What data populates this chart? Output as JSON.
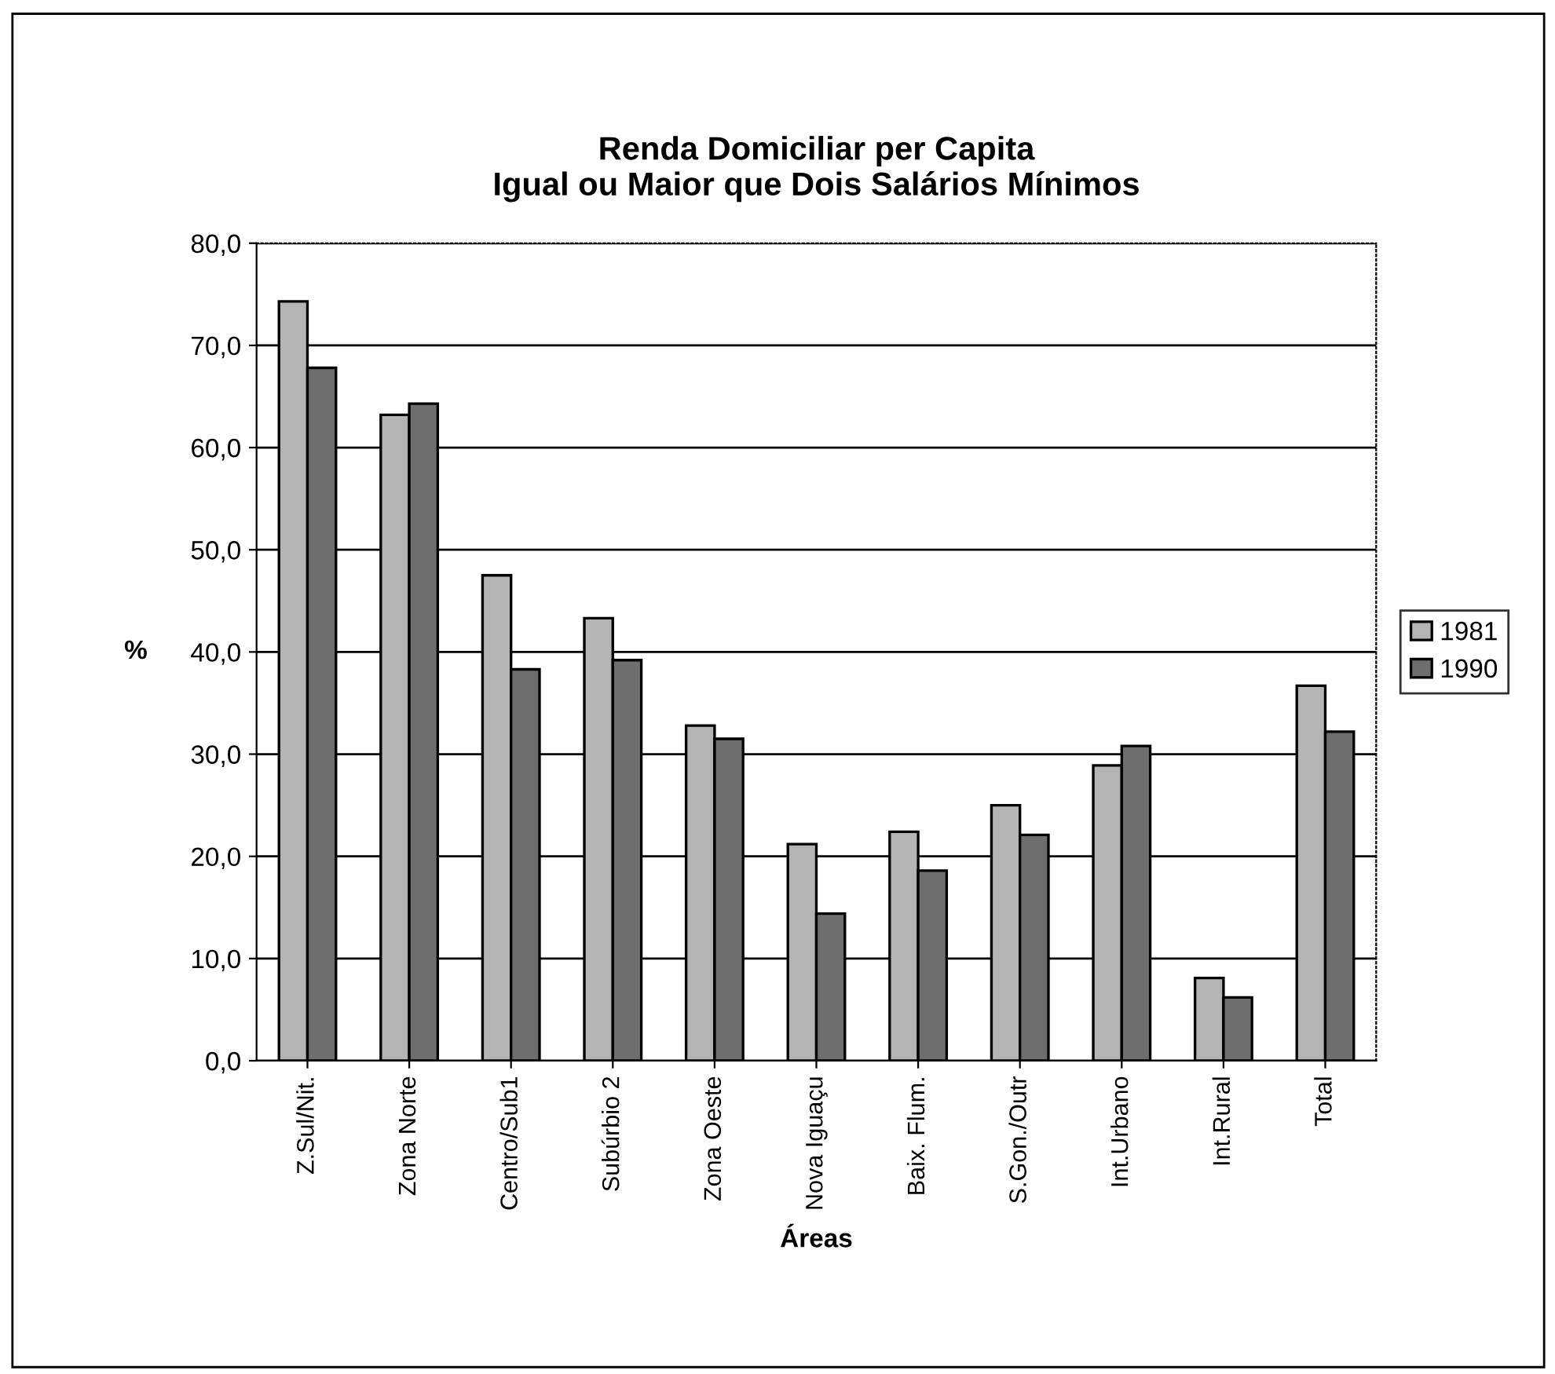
{
  "chart_data": {
    "type": "bar",
    "title": "Renda Domiciliar per Capita\nIgual ou Maior que Dois Salários Mínimos",
    "xlabel": "Áreas",
    "ylabel": "%",
    "categories": [
      "Z.Sul/Nit.",
      "Zona Norte",
      "Centro/Sub1",
      "Subúrbio 2",
      "Zona Oeste",
      "Nova Iguaçu",
      "Baix. Flum.",
      "S.Gon./Outr",
      "Int.Urbano",
      "Int.Rural",
      "Total"
    ],
    "series": [
      {
        "name": "1981",
        "color": "#b4b4b4",
        "values": [
          74.3,
          63.2,
          47.5,
          43.3,
          32.8,
          21.2,
          22.4,
          25.0,
          28.9,
          8.1,
          36.7
        ]
      },
      {
        "name": "1990",
        "color": "#6e6e6e",
        "values": [
          67.8,
          64.3,
          38.3,
          39.2,
          31.5,
          14.4,
          18.6,
          22.1,
          30.8,
          6.2,
          32.2
        ]
      }
    ],
    "ylim": [
      0,
      80
    ],
    "yticks": [
      {
        "value": 0,
        "label": "0,0"
      },
      {
        "value": 10,
        "label": "10,0"
      },
      {
        "value": 20,
        "label": "20,0"
      },
      {
        "value": 30,
        "label": "30,0"
      },
      {
        "value": 40,
        "label": "40,0"
      },
      {
        "value": 50,
        "label": "50,0"
      },
      {
        "value": 60,
        "label": "60,0"
      },
      {
        "value": 70,
        "label": "70,0"
      },
      {
        "value": 80,
        "label": "80,0"
      }
    ],
    "grid": "y",
    "legend": "right"
  }
}
